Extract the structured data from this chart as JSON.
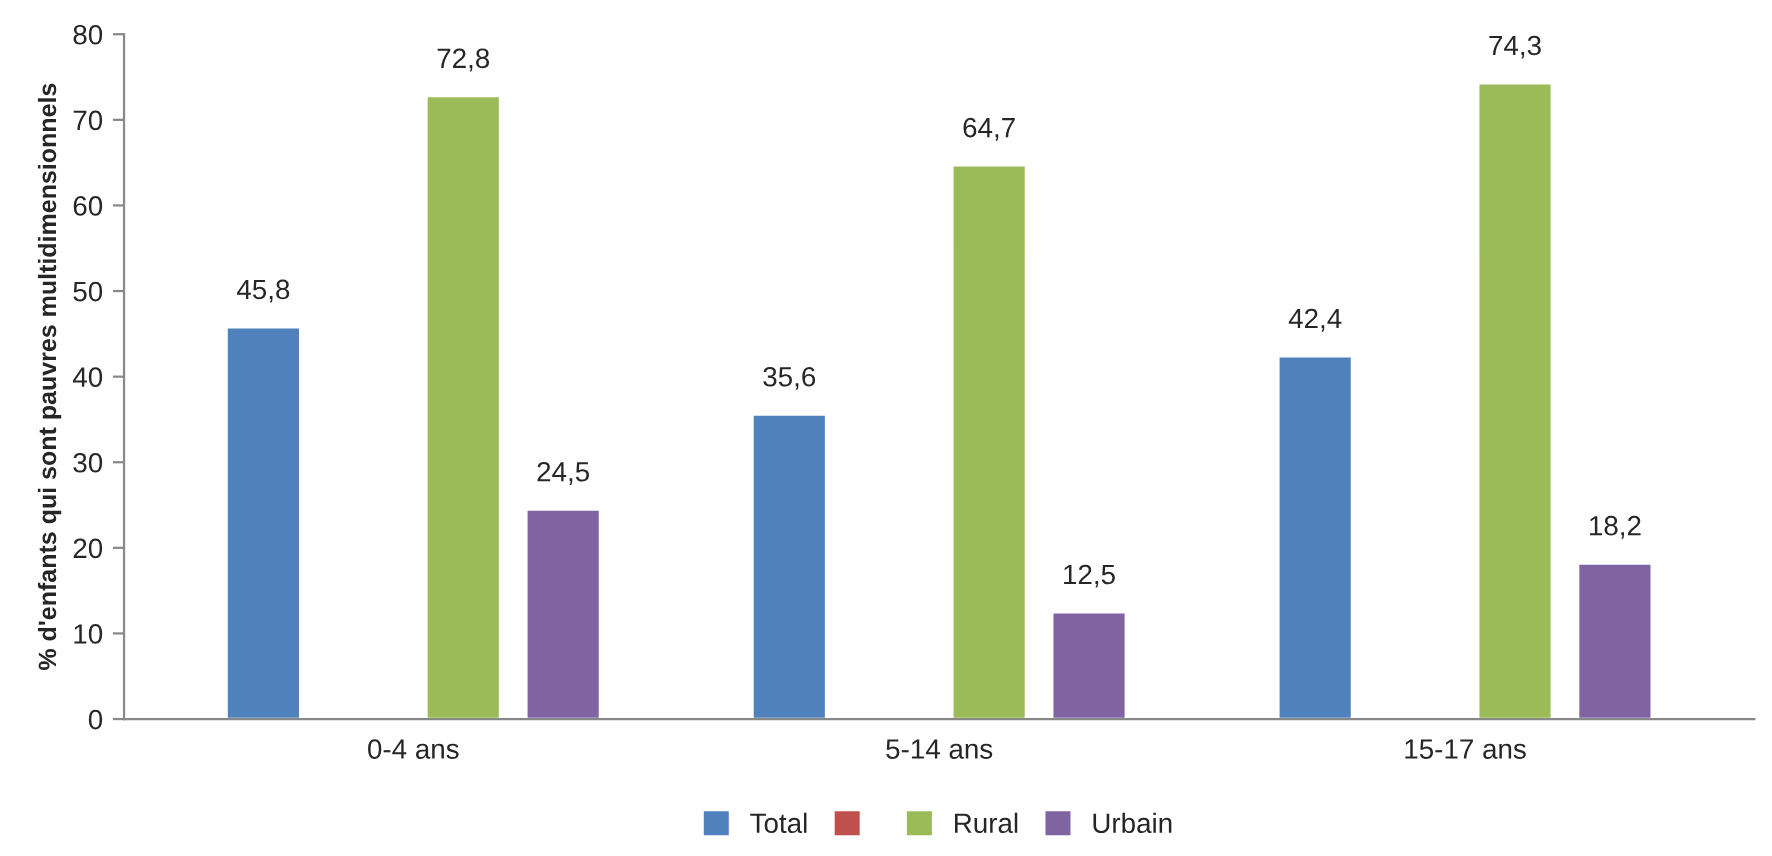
{
  "chart_data": {
    "type": "bar",
    "ylabel": "% d'enfants qui sont pauvres multidimensionnels",
    "categories": [
      "0-4 ans",
      "5-14 ans",
      "15-17 ans"
    ],
    "series": [
      {
        "name": "Total",
        "color": "#4f81bd",
        "values": [
          45.8,
          35.6,
          42.4
        ],
        "value_labels": [
          "45,8",
          "35,6",
          "42,4"
        ]
      },
      {
        "color": "#c0504d",
        "values": [
          null,
          null,
          null
        ]
      },
      {
        "name": "Rural",
        "color": "#9bbb59",
        "values": [
          72.8,
          64.7,
          74.3
        ],
        "value_labels": [
          "72,8",
          "64,7",
          "74,3"
        ]
      },
      {
        "name": "Urbain",
        "color": "#8064a2",
        "values": [
          24.5,
          12.5,
          18.2
        ],
        "value_labels": [
          "24,5",
          "12,5",
          "18,2"
        ]
      }
    ],
    "ylim": [
      0,
      80
    ],
    "yticks": [
      0,
      10,
      20,
      30,
      40,
      50,
      60,
      70,
      80
    ],
    "grid": false,
    "legend": "bottom"
  }
}
